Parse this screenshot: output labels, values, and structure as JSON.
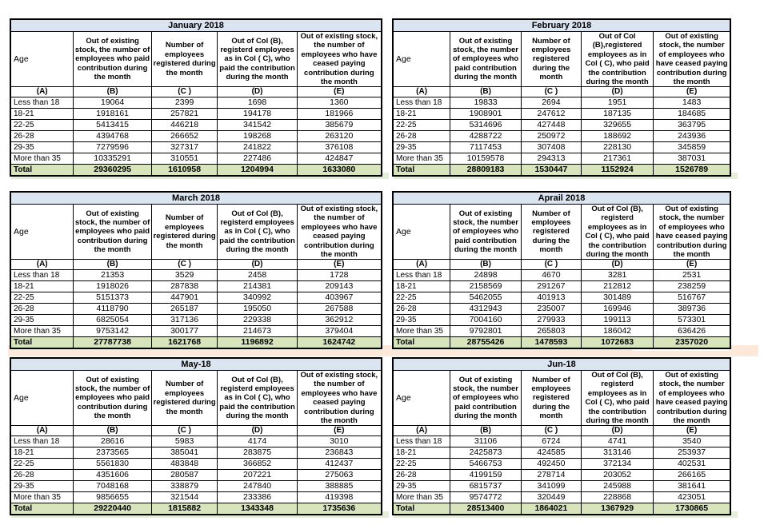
{
  "colors": {
    "title_bg": "#dbe5f1",
    "total_bg": "#d7e4bc",
    "strip_bg": "#e5eed6",
    "band_bg": "#fde9d9",
    "border": "#000000"
  },
  "tables": [
    {
      "title": "January 2018",
      "headers": [
        "Age",
        "Out of existing stock, the number of employees who paid contribution during the month",
        "Number of employees registered during the month",
        "Out of Col (B), registerd employees as in Col ( C), who paid the contribution during the month",
        "Out of existing stock, the number of employees who have ceased paying contribution during the month"
      ],
      "col_letters": [
        "(A)",
        "(B)",
        "(C )",
        "(D)",
        "(E)"
      ],
      "rows": [
        {
          "age": "Less than 18",
          "values": [
            "19064",
            "2399",
            "1698",
            "1360"
          ]
        },
        {
          "age": "18-21",
          "values": [
            "1918161",
            "257821",
            "194178",
            "181966"
          ]
        },
        {
          "age": "22-25",
          "values": [
            "5413415",
            "446218",
            "341542",
            "385679"
          ]
        },
        {
          "age": "26-28",
          "values": [
            "4394768",
            "266652",
            "198268",
            "263120"
          ]
        },
        {
          "age": "29-35",
          "values": [
            "7279596",
            "327317",
            "241822",
            "376108"
          ]
        },
        {
          "age": "More than 35",
          "values": [
            "10335291",
            "310551",
            "227486",
            "424847"
          ]
        }
      ],
      "total": {
        "label": "Total",
        "values": [
          "29360295",
          "1610958",
          "1204994",
          "1633080"
        ]
      }
    },
    {
      "title": "February 2018",
      "headers": [
        "Age",
        "Out of existing stock, the number of employees who paid contribution during the month",
        "Number of employees registered during the month",
        "Out of Col (B),registered employees as in Col ( C), who paid the contribution during the month",
        "Out of existing stock, the number of employees who have ceased paying contribution during the month"
      ],
      "col_letters": [
        "(A)",
        "(B)",
        "(C )",
        "(D)",
        "(E)"
      ],
      "rows": [
        {
          "age": "Less than 18",
          "values": [
            "19833",
            "2694",
            "1951",
            "1483"
          ]
        },
        {
          "age": "18-21",
          "values": [
            "1908901",
            "247612",
            "187135",
            "184685"
          ]
        },
        {
          "age": "22-25",
          "values": [
            "5314696",
            "427448",
            "329655",
            "363795"
          ]
        },
        {
          "age": "26-28",
          "values": [
            "4288722",
            "250972",
            "188692",
            "243936"
          ]
        },
        {
          "age": "29-35",
          "values": [
            "7117453",
            "307408",
            "228130",
            "345859"
          ]
        },
        {
          "age": "More than 35",
          "values": [
            "10159578",
            "294313",
            "217361",
            "387031"
          ]
        }
      ],
      "total": {
        "label": "Total",
        "values": [
          "28809183",
          "1530447",
          "1152924",
          "1526789"
        ]
      }
    },
    {
      "title": "March 2018",
      "headers": [
        "Age",
        "Out of existing stock, the number of employees who paid contribution during the month",
        "Number of employees registered during the month",
        "Out of Col (B), registerd employees as in Col ( C), who paid the contribution during the month",
        "Out of existing stock, the number of employees who have ceased paying contribution during the month"
      ],
      "col_letters": [
        "(A)",
        "(B)",
        "(C )",
        "(D)",
        "(E)"
      ],
      "rows": [
        {
          "age": "Less than 18",
          "values": [
            "21353",
            "3529",
            "2458",
            "1728"
          ]
        },
        {
          "age": "18-21",
          "values": [
            "1918026",
            "287838",
            "214381",
            "209143"
          ]
        },
        {
          "age": "22-25",
          "values": [
            "5151373",
            "447901",
            "340992",
            "403967"
          ]
        },
        {
          "age": "26-28",
          "values": [
            "4118790",
            "265187",
            "195050",
            "267588"
          ]
        },
        {
          "age": "29-35",
          "values": [
            "6825054",
            "317136",
            "229338",
            "362912"
          ]
        },
        {
          "age": "More than 35",
          "values": [
            "9753142",
            "300177",
            "214673",
            "379404"
          ]
        }
      ],
      "total": {
        "label": "Total",
        "values": [
          "27787738",
          "1621768",
          "1196892",
          "1624742"
        ]
      }
    },
    {
      "title": "Aprail 2018",
      "headers": [
        "Age",
        "Out of existing stock, the number of employees who paid contribution during the month",
        "Number of employees registered during the month",
        "Out of Col (B), registerd employees as in Col ( C), who paid the contribution during the month",
        "Out of existing stock, the number of employees who have ceased paying contribution during the month"
      ],
      "col_letters": [
        "(A)",
        "(B)",
        "(C )",
        "(D)",
        "(E)"
      ],
      "rows": [
        {
          "age": "Less than 18",
          "values": [
            "24898",
            "4670",
            "3281",
            "2531"
          ]
        },
        {
          "age": "18-21",
          "values": [
            "2158569",
            "291267",
            "212812",
            "238259"
          ]
        },
        {
          "age": "22-25",
          "values": [
            "5462055",
            "401913",
            "301489",
            "516767"
          ]
        },
        {
          "age": "26-28",
          "values": [
            "4312943",
            "235007",
            "169946",
            "389736"
          ]
        },
        {
          "age": "29-35",
          "values": [
            "7004160",
            "279933",
            "199113",
            "573301"
          ]
        },
        {
          "age": "More than 35",
          "values": [
            "9792801",
            "265803",
            "186042",
            "636426"
          ]
        }
      ],
      "total": {
        "label": "Total",
        "values": [
          "28755426",
          "1478593",
          "1072683",
          "2357020"
        ]
      }
    },
    {
      "title": "May-18",
      "headers": [
        "Age",
        "Out of existing stock, the number of employees who paid contribution during the month",
        "Number of employees registered during the month",
        "Out of Col (B), registerd employees as in Col ( C), who paid the contribution during the month",
        "Out of existing stock, the number of employees who have ceased paying contribution during the month"
      ],
      "col_letters": [
        "(A)",
        "(B)",
        "(C )",
        "(D)",
        "(E)"
      ],
      "rows": [
        {
          "age": "Less than 18",
          "values": [
            "28616",
            "5983",
            "4174",
            "3010"
          ]
        },
        {
          "age": "18-21",
          "values": [
            "2373565",
            "385041",
            "283875",
            "236843"
          ]
        },
        {
          "age": "22-25",
          "values": [
            "5561830",
            "483848",
            "366852",
            "412437"
          ]
        },
        {
          "age": "26-28",
          "values": [
            "4351606",
            "280587",
            "207221",
            "275063"
          ]
        },
        {
          "age": "29-35",
          "values": [
            "7048168",
            "338879",
            "247840",
            "388885"
          ]
        },
        {
          "age": "More than 35",
          "values": [
            "9856655",
            "321544",
            "233386",
            "419398"
          ]
        }
      ],
      "total": {
        "label": "Total",
        "values": [
          "29220440",
          "1815882",
          "1343348",
          "1735636"
        ]
      }
    },
    {
      "title": "Jun-18",
      "headers": [
        "Age",
        "Out of existing stock, the number of employees who paid contribution during the month",
        "Number of employees registered during the month",
        "Out of Col (B), registerd employees as in Col ( C), who paid the contribution during the month",
        "Out of existing stock, the number of employees who have ceased paying contribution during the month"
      ],
      "col_letters": [
        "(A)",
        "(B)",
        "(C )",
        "(D)",
        "(E)"
      ],
      "rows": [
        {
          "age": "Less than 18",
          "values": [
            "31106",
            "6724",
            "4741",
            "3540"
          ]
        },
        {
          "age": "18-21",
          "values": [
            "2425873",
            "424585",
            "313146",
            "253937"
          ]
        },
        {
          "age": "22-25",
          "values": [
            "5466753",
            "492450",
            "372134",
            "402531"
          ]
        },
        {
          "age": "26-28",
          "values": [
            "4199159",
            "278714",
            "203052",
            "266165"
          ]
        },
        {
          "age": "29-35",
          "values": [
            "6815737",
            "341099",
            "245988",
            "381641"
          ]
        },
        {
          "age": "More than 35",
          "values": [
            "9574772",
            "320449",
            "228868",
            "423051"
          ]
        }
      ],
      "total": {
        "label": "Total",
        "values": [
          "28513400",
          "1864021",
          "1367929",
          "1730865"
        ]
      }
    }
  ]
}
